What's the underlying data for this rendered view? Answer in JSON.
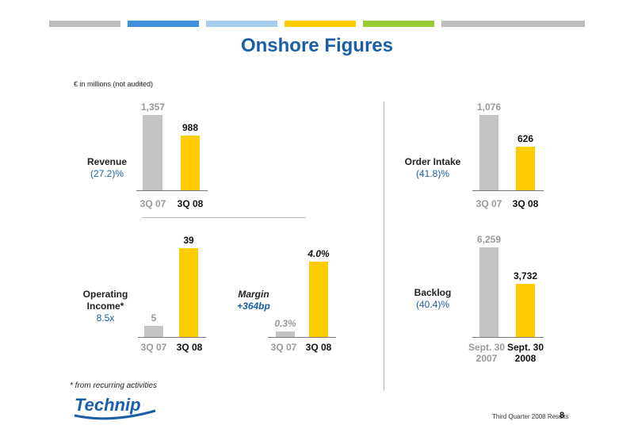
{
  "header": {
    "title": "Onshore Figures",
    "unit_note": "€ in millions (not audited)",
    "colors": [
      "#bdbdbd",
      "#3f90dc",
      "#a6cdee",
      "#ffcc00",
      "#99cc33",
      "#bdbdbd"
    ]
  },
  "panels": {
    "revenue": {
      "label": "Revenue",
      "change": "(27.2)%"
    },
    "order_intake": {
      "label": "Order Intake",
      "change": "(41.8)%"
    },
    "operating_income": {
      "label": "Operating Income*",
      "change": "8.5x"
    },
    "margin": {
      "label": "Margin",
      "change": "+364bp"
    },
    "backlog": {
      "label": "Backlog",
      "change": "(40.4)%"
    }
  },
  "chart_data": [
    {
      "id": "revenue",
      "type": "bar",
      "categories": [
        "3Q 07",
        "3Q 08"
      ],
      "values": [
        1357,
        988
      ],
      "value_labels": [
        "1,357",
        "988"
      ]
    },
    {
      "id": "order_intake",
      "type": "bar",
      "categories": [
        "3Q 07",
        "3Q 08"
      ],
      "values": [
        1076,
        626
      ],
      "value_labels": [
        "1,076",
        "626"
      ]
    },
    {
      "id": "operating_income",
      "type": "bar",
      "categories": [
        "3Q 07",
        "3Q 08"
      ],
      "values": [
        5,
        39
      ],
      "value_labels": [
        "5",
        "39"
      ]
    },
    {
      "id": "margin",
      "type": "bar",
      "categories": [
        "3Q 07",
        "3Q 08"
      ],
      "values": [
        0.3,
        4.0
      ],
      "value_labels": [
        "0.3%",
        "4.0%"
      ]
    },
    {
      "id": "backlog",
      "type": "bar",
      "categories": [
        "Sept. 30 2007",
        "Sept. 30 2008"
      ],
      "values": [
        6259,
        3732
      ],
      "value_labels": [
        "6,259",
        "3,732"
      ]
    }
  ],
  "footnote": "* from recurring activities",
  "logo_text": "Technip",
  "footer": {
    "text": "Third Quarter 2008 Results",
    "page": "8"
  },
  "bar_colors": {
    "previous": "#c4c4c4",
    "current": "#ffcc00"
  }
}
